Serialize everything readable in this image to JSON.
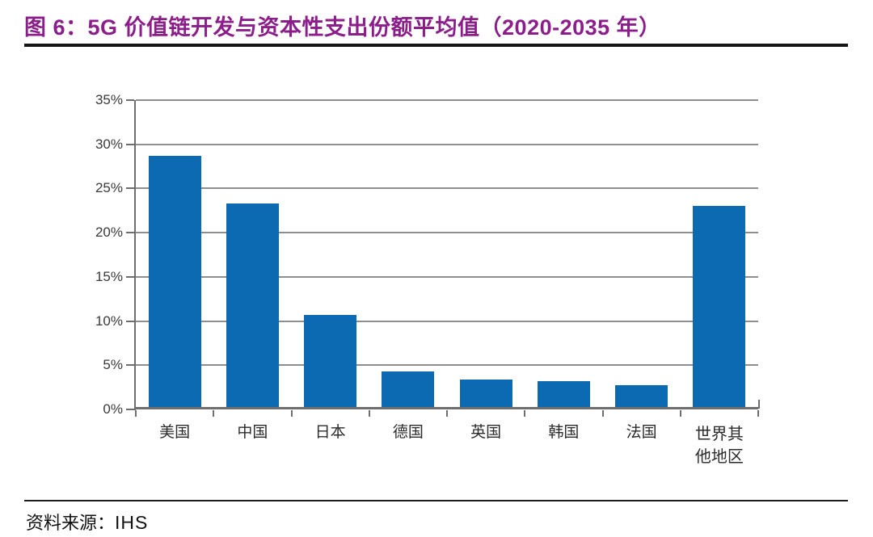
{
  "title": "图 6：5G 价值链开发与资本性支出份额平均值（2020-2035 年）",
  "footer": {
    "source_label": "资料来源：",
    "source_value": "IHS"
  },
  "colors": {
    "title": "#8B1E8B",
    "bar": "#0b6ab2",
    "gridline": "#8e8e8e",
    "axis": "#6e6e6e"
  },
  "chart_data": {
    "type": "bar",
    "title": "5G 价值链开发与资本性支出份额平均值（2020-2035 年）",
    "categories": [
      "美国",
      "中国",
      "日本",
      "德国",
      "英国",
      "韩国",
      "法国",
      "世界其他地区"
    ],
    "values": [
      28.7,
      23.3,
      10.7,
      4.3,
      3.4,
      3.2,
      2.7,
      23.0
    ],
    "unit": "%",
    "xlabel": "",
    "ylabel": "",
    "ylim": [
      0,
      35
    ],
    "ytick_step": 5,
    "ytick_labels": [
      "0%",
      "5%",
      "10%",
      "15%",
      "20%",
      "25%",
      "30%",
      "35%"
    ],
    "grid": true,
    "legend_position": "none"
  }
}
